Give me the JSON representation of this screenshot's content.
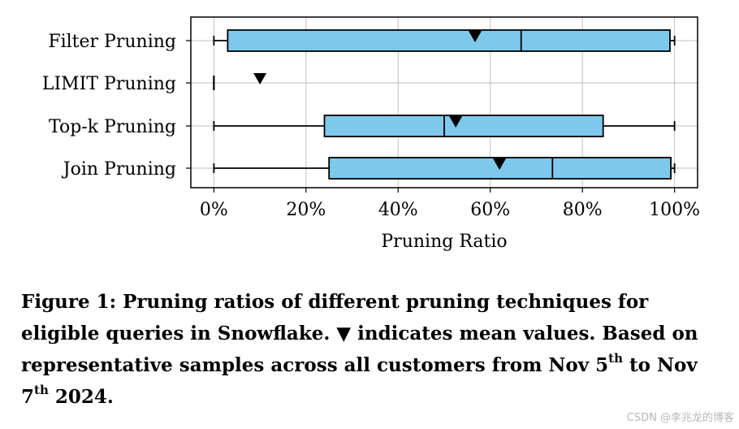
{
  "chart_data": {
    "type": "boxplot",
    "orientation": "horizontal",
    "title": "",
    "xlabel": "Pruning Ratio",
    "ylabel": "",
    "xlim": [
      -5,
      105
    ],
    "x_ticks": [
      0,
      20,
      40,
      60,
      80,
      100
    ],
    "x_tick_labels": [
      "0%",
      "20%",
      "40%",
      "60%",
      "80%",
      "100%"
    ],
    "grid": true,
    "box_color": "#7ec8ec",
    "edge_color": "#000000",
    "grid_color": "#bfbfbf",
    "mean_marker": "▼",
    "categories": [
      {
        "label": "Filter Pruning",
        "whisker_low": 0,
        "q1": 3,
        "median": 66.7,
        "q3": 99,
        "whisker_high": 100,
        "mean": 56.7
      },
      {
        "label": "LIMIT Pruning",
        "whisker_low": 0,
        "q1": 0,
        "median": 0,
        "q3": 0,
        "whisker_high": 0,
        "mean": 10
      },
      {
        "label": "Top-k Pruning",
        "whisker_low": 0,
        "q1": 24,
        "median": 50,
        "q3": 84.5,
        "whisker_high": 100,
        "mean": 52.5
      },
      {
        "label": "Join Pruning",
        "whisker_low": 0,
        "q1": 25,
        "median": 73.5,
        "q3": 99.2,
        "whisker_high": 100,
        "mean": 62
      }
    ]
  },
  "caption": {
    "prefix": "Figure 1: Pruning ratios of different pruning techniques for eligible queries in Snowflake. ▼ indicates mean values. Based on representative samples across all customers from Nov 5",
    "sup1": "th",
    "middle": " to Nov 7",
    "sup2": "th",
    "suffix": " 2024."
  },
  "watermark": "CSDN @李兆龙的博客"
}
